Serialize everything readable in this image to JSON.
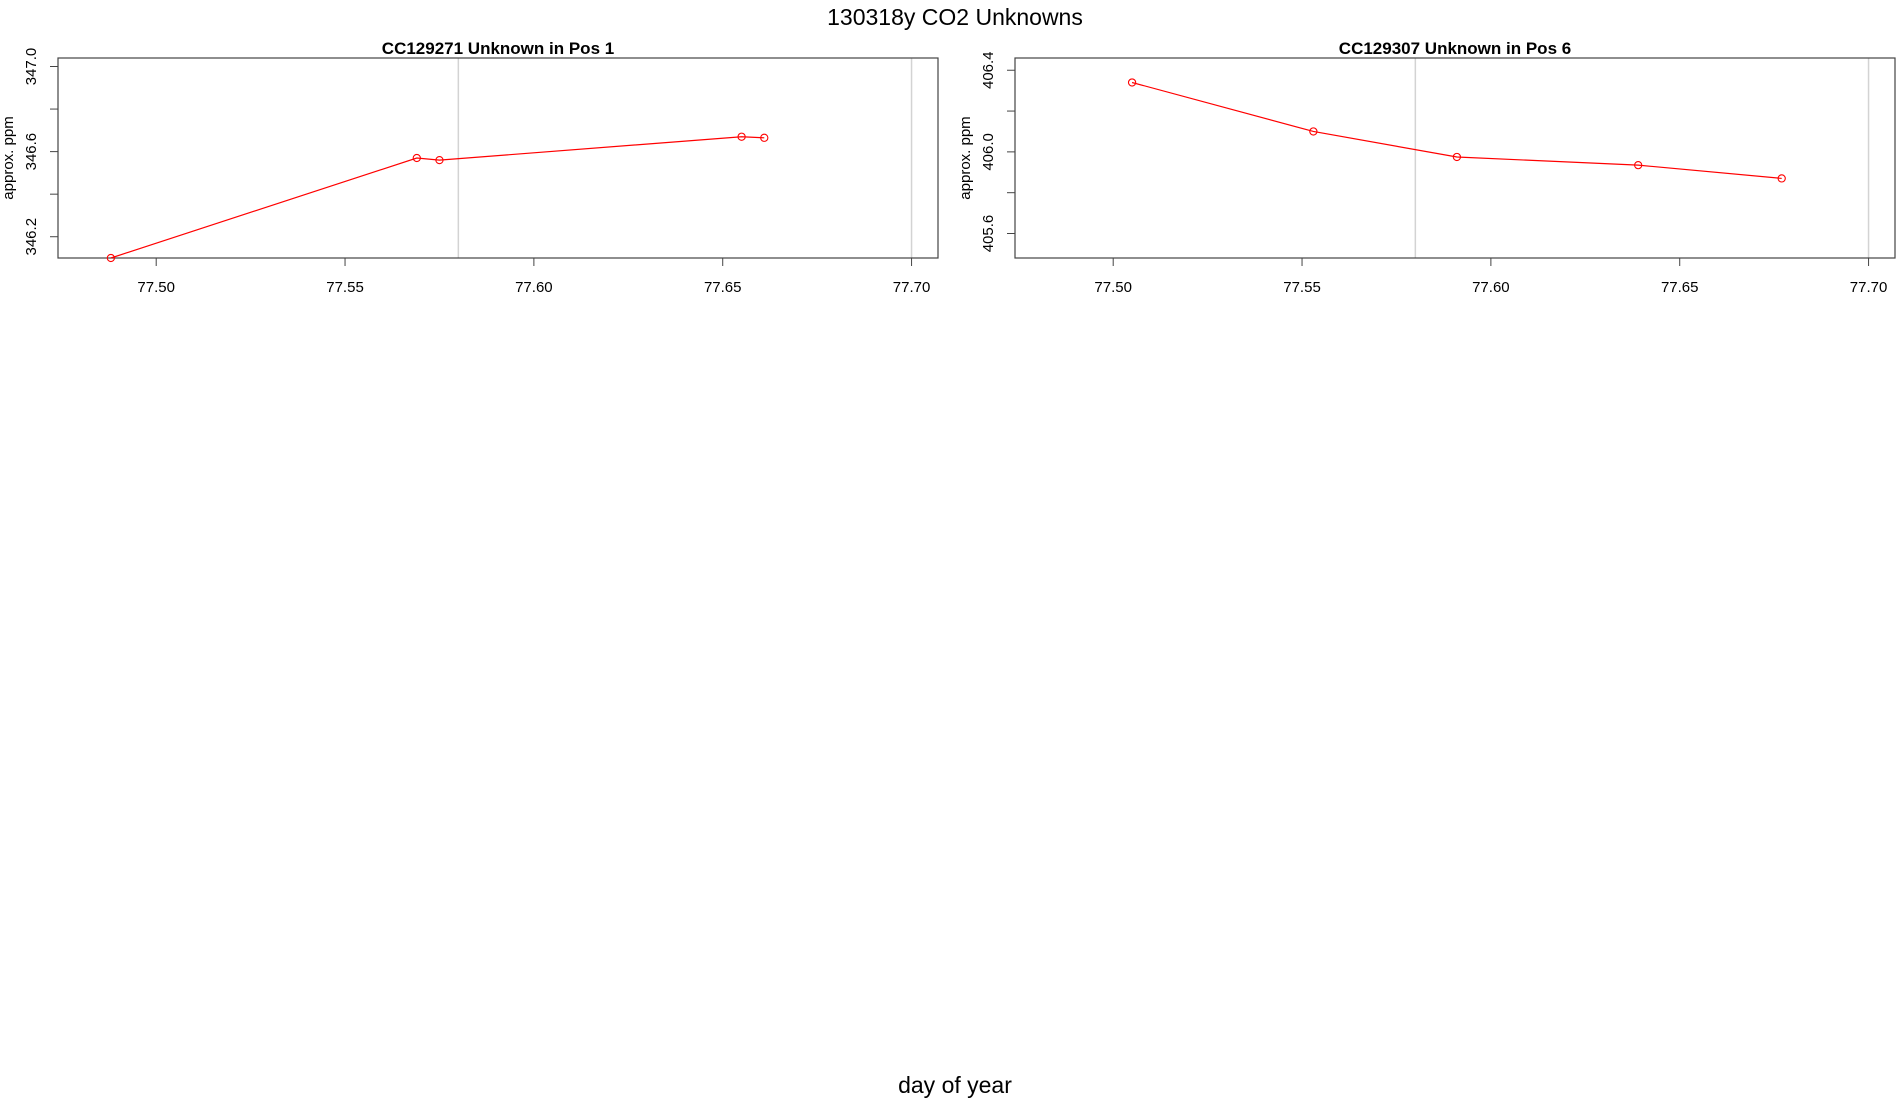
{
  "figure": {
    "title": "130318y  CO2 Unknowns",
    "xlabel": "day of year"
  },
  "chart_data": [
    {
      "type": "line",
      "title": "CC129271    Unknown in Pos 1",
      "xlabel": "",
      "ylabel": "approx. ppm",
      "xlim": [
        77.474,
        77.707
      ],
      "ylim": [
        346.1,
        347.04
      ],
      "xticks": [
        "77.50",
        "77.55",
        "77.60",
        "77.65",
        "77.70"
      ],
      "xtick_values": [
        77.5,
        77.55,
        77.6,
        77.65,
        77.7
      ],
      "yticks": [
        "346.2",
        "346.6",
        "347.0"
      ],
      "ytick_values": [
        346.2,
        346.6,
        347.0
      ],
      "yminor_values": [
        346.4,
        346.8
      ],
      "vlines": [
        77.58,
        77.7
      ],
      "grid": false,
      "series": [
        {
          "color": "#ff0000",
          "x": [
            77.488,
            77.569,
            77.575,
            77.655,
            77.661
          ],
          "y": [
            346.1,
            346.57,
            346.56,
            346.67,
            346.665
          ]
        }
      ]
    },
    {
      "type": "line",
      "title": "CC129307    Unknown in Pos 6",
      "xlabel": "",
      "ylabel": "approx. ppm",
      "xlim": [
        77.474,
        77.707
      ],
      "ylim": [
        405.48,
        406.46
      ],
      "xticks": [
        "77.50",
        "77.55",
        "77.60",
        "77.65",
        "77.70"
      ],
      "xtick_values": [
        77.5,
        77.55,
        77.6,
        77.65,
        77.7
      ],
      "yticks": [
        "405.6",
        "406.0",
        "406.4"
      ],
      "ytick_values": [
        405.6,
        406.0,
        406.4
      ],
      "yminor_values": [
        405.8,
        406.2
      ],
      "vlines": [
        77.58,
        77.7
      ],
      "grid": false,
      "series": [
        {
          "color": "#ff0000",
          "x": [
            77.505,
            77.553,
            77.591,
            77.639,
            77.677
          ],
          "y": [
            406.34,
            406.1,
            405.975,
            405.935,
            405.87
          ]
        }
      ]
    }
  ]
}
